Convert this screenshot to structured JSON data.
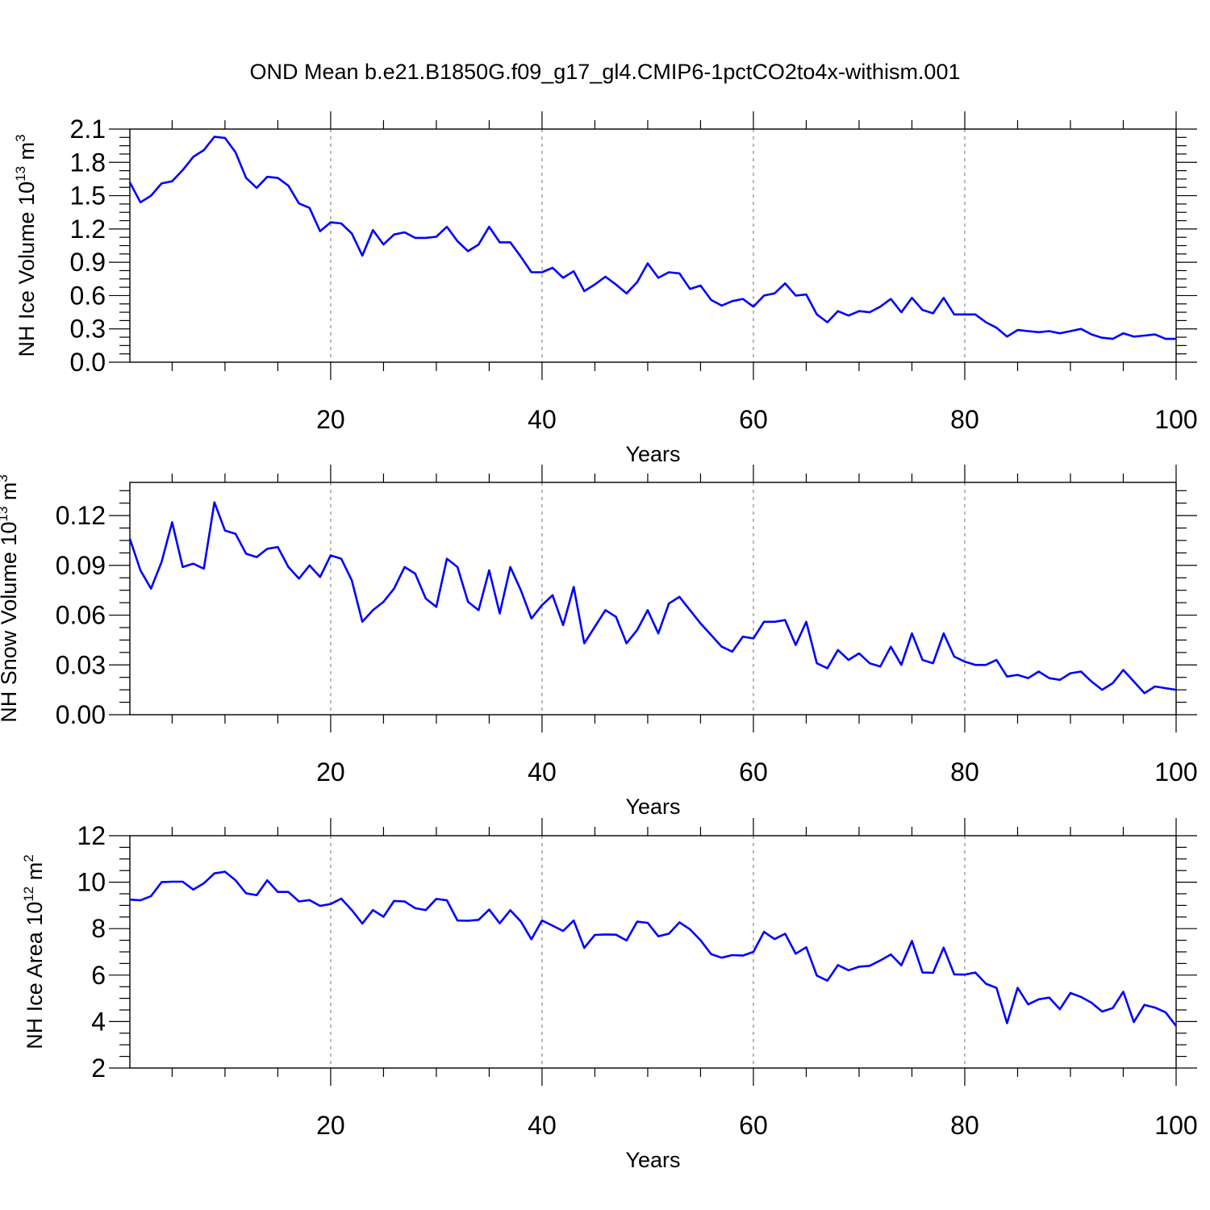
{
  "title": "OND Mean b.e21.B1850G.f09_g17_gl4.CMIP6-1pctCO2to4x-withism.001",
  "line_color": "#0000ff",
  "chart_data": [
    {
      "type": "line",
      "ylabel": "NH Ice Volume",
      "ylabel_unit": {
        "base": "10",
        "exp": "13",
        "unit": "m",
        "unit_exp": "3"
      },
      "xlabel": "Years",
      "xlim": [
        1,
        100
      ],
      "ylim": [
        0,
        2.1
      ],
      "xticks": [
        "20",
        "40",
        "60",
        "80",
        "100"
      ],
      "yticks": [
        "0.0",
        "0.3",
        "0.6",
        "0.9",
        "1.2",
        "1.5",
        "1.8",
        "2.1"
      ],
      "x": [
        1,
        2,
        3,
        4,
        5,
        6,
        7,
        8,
        9,
        10,
        11,
        12,
        13,
        14,
        15,
        16,
        17,
        18,
        19,
        20,
        21,
        22,
        23,
        24,
        25,
        26,
        27,
        28,
        29,
        30,
        31,
        32,
        33,
        34,
        35,
        36,
        37,
        38,
        39,
        40,
        41,
        42,
        43,
        44,
        45,
        46,
        47,
        48,
        49,
        50,
        51,
        52,
        53,
        54,
        55,
        56,
        57,
        58,
        59,
        60,
        61,
        62,
        63,
        64,
        65,
        66,
        67,
        68,
        69,
        70,
        71,
        72,
        73,
        74,
        75,
        76,
        77,
        78,
        79,
        80,
        81,
        82,
        83,
        84,
        85,
        86,
        87,
        88,
        89,
        90,
        91,
        92,
        93,
        94,
        95,
        96,
        97,
        98,
        99,
        100
      ],
      "values": [
        1.62,
        1.44,
        1.5,
        1.61,
        1.63,
        1.73,
        1.85,
        1.91,
        2.03,
        2.02,
        1.89,
        1.66,
        1.57,
        1.67,
        1.66,
        1.59,
        1.43,
        1.39,
        1.18,
        1.26,
        1.25,
        1.16,
        0.96,
        1.19,
        1.06,
        1.15,
        1.17,
        1.12,
        1.12,
        1.13,
        1.22,
        1.09,
        1.0,
        1.06,
        1.22,
        1.08,
        1.08,
        0.95,
        0.81,
        0.81,
        0.85,
        0.76,
        0.82,
        0.64,
        0.7,
        0.77,
        0.7,
        0.62,
        0.72,
        0.89,
        0.76,
        0.81,
        0.8,
        0.66,
        0.69,
        0.56,
        0.51,
        0.55,
        0.57,
        0.5,
        0.6,
        0.62,
        0.71,
        0.6,
        0.61,
        0.43,
        0.36,
        0.46,
        0.42,
        0.46,
        0.45,
        0.5,
        0.57,
        0.45,
        0.58,
        0.47,
        0.44,
        0.58,
        0.43,
        0.43,
        0.43,
        0.36,
        0.31,
        0.23,
        0.29,
        0.28,
        0.27,
        0.28,
        0.26,
        0.28,
        0.3,
        0.25,
        0.22,
        0.21,
        0.26,
        0.23,
        0.24,
        0.25,
        0.21,
        0.21
      ]
    },
    {
      "type": "line",
      "ylabel": "NH Snow Volume",
      "ylabel_unit": {
        "base": "10",
        "exp": "13",
        "unit": "m",
        "unit_exp": "3"
      },
      "xlabel": "Years",
      "xlim": [
        1,
        100
      ],
      "ylim": [
        0,
        0.14
      ],
      "xticks": [
        "20",
        "40",
        "60",
        "80",
        "100"
      ],
      "yticks": [
        "0.00",
        "0.03",
        "0.06",
        "0.09",
        "0.12"
      ],
      "x": [
        1,
        2,
        3,
        4,
        5,
        6,
        7,
        8,
        9,
        10,
        11,
        12,
        13,
        14,
        15,
        16,
        17,
        18,
        19,
        20,
        21,
        22,
        23,
        24,
        25,
        26,
        27,
        28,
        29,
        30,
        31,
        32,
        33,
        34,
        35,
        36,
        37,
        38,
        39,
        40,
        41,
        42,
        43,
        44,
        45,
        46,
        47,
        48,
        49,
        50,
        51,
        52,
        53,
        54,
        55,
        56,
        57,
        58,
        59,
        60,
        61,
        62,
        63,
        64,
        65,
        66,
        67,
        68,
        69,
        70,
        71,
        72,
        73,
        74,
        75,
        76,
        77,
        78,
        79,
        80,
        81,
        82,
        83,
        84,
        85,
        86,
        87,
        88,
        89,
        90,
        91,
        92,
        93,
        94,
        95,
        96,
        97,
        98,
        99,
        100
      ],
      "values": [
        0.106,
        0.087,
        0.076,
        0.092,
        0.116,
        0.089,
        0.091,
        0.088,
        0.128,
        0.111,
        0.109,
        0.097,
        0.095,
        0.1,
        0.101,
        0.089,
        0.082,
        0.09,
        0.083,
        0.096,
        0.094,
        0.081,
        0.056,
        0.063,
        0.068,
        0.076,
        0.089,
        0.085,
        0.07,
        0.065,
        0.094,
        0.089,
        0.068,
        0.063,
        0.087,
        0.061,
        0.089,
        0.075,
        0.058,
        0.066,
        0.072,
        0.054,
        0.077,
        0.043,
        0.053,
        0.063,
        0.059,
        0.043,
        0.051,
        0.063,
        0.049,
        0.067,
        0.071,
        0.063,
        0.055,
        0.048,
        0.041,
        0.038,
        0.047,
        0.046,
        0.056,
        0.056,
        0.057,
        0.042,
        0.056,
        0.031,
        0.028,
        0.039,
        0.033,
        0.037,
        0.031,
        0.029,
        0.041,
        0.03,
        0.049,
        0.033,
        0.031,
        0.049,
        0.035,
        0.032,
        0.03,
        0.03,
        0.033,
        0.023,
        0.024,
        0.022,
        0.026,
        0.022,
        0.021,
        0.025,
        0.026,
        0.02,
        0.015,
        0.019,
        0.027,
        0.02,
        0.013,
        0.017,
        0.016,
        0.015
      ]
    },
    {
      "type": "line",
      "ylabel": "NH Ice Area",
      "ylabel_unit": {
        "base": "10",
        "exp": "12",
        "unit": "m",
        "unit_exp": "2"
      },
      "xlabel": "Years",
      "xlim": [
        1,
        100
      ],
      "ylim": [
        2,
        12
      ],
      "xticks": [
        "20",
        "40",
        "60",
        "80",
        "100"
      ],
      "yticks": [
        "2",
        "4",
        "6",
        "8",
        "10",
        "12"
      ],
      "x": [
        1,
        2,
        3,
        4,
        5,
        6,
        7,
        8,
        9,
        10,
        11,
        12,
        13,
        14,
        15,
        16,
        17,
        18,
        19,
        20,
        21,
        22,
        23,
        24,
        25,
        26,
        27,
        28,
        29,
        30,
        31,
        32,
        33,
        34,
        35,
        36,
        37,
        38,
        39,
        40,
        41,
        42,
        43,
        44,
        45,
        46,
        47,
        48,
        49,
        50,
        51,
        52,
        53,
        54,
        55,
        56,
        57,
        58,
        59,
        60,
        61,
        62,
        63,
        64,
        65,
        66,
        67,
        68,
        69,
        70,
        71,
        72,
        73,
        74,
        75,
        76,
        77,
        78,
        79,
        80,
        81,
        82,
        83,
        84,
        85,
        86,
        87,
        88,
        89,
        90,
        91,
        92,
        93,
        94,
        95,
        96,
        97,
        98,
        99,
        100
      ],
      "values": [
        9.25,
        9.22,
        9.4,
        10.0,
        10.02,
        10.02,
        9.68,
        9.95,
        10.38,
        10.45,
        10.08,
        9.52,
        9.44,
        10.08,
        9.58,
        9.58,
        9.17,
        9.23,
        8.98,
        9.06,
        9.29,
        8.8,
        8.22,
        8.8,
        8.51,
        9.19,
        9.17,
        8.88,
        8.8,
        9.28,
        9.22,
        8.35,
        8.34,
        8.38,
        8.82,
        8.23,
        8.79,
        8.31,
        7.54,
        8.35,
        8.13,
        7.9,
        8.35,
        7.17,
        7.73,
        7.75,
        7.74,
        7.49,
        8.3,
        8.25,
        7.67,
        7.78,
        8.27,
        7.97,
        7.5,
        6.9,
        6.75,
        6.86,
        6.84,
        7.0,
        7.86,
        7.55,
        7.78,
        6.92,
        7.2,
        5.98,
        5.76,
        6.43,
        6.21,
        6.36,
        6.4,
        6.63,
        6.89,
        6.42,
        7.47,
        6.11,
        6.1,
        7.18,
        6.03,
        6.02,
        6.11,
        5.63,
        5.45,
        3.93,
        5.45,
        4.74,
        4.96,
        5.03,
        4.53,
        5.23,
        5.06,
        4.81,
        4.43,
        4.58,
        5.28,
        3.98,
        4.72,
        4.6,
        4.4,
        3.81
      ]
    }
  ]
}
